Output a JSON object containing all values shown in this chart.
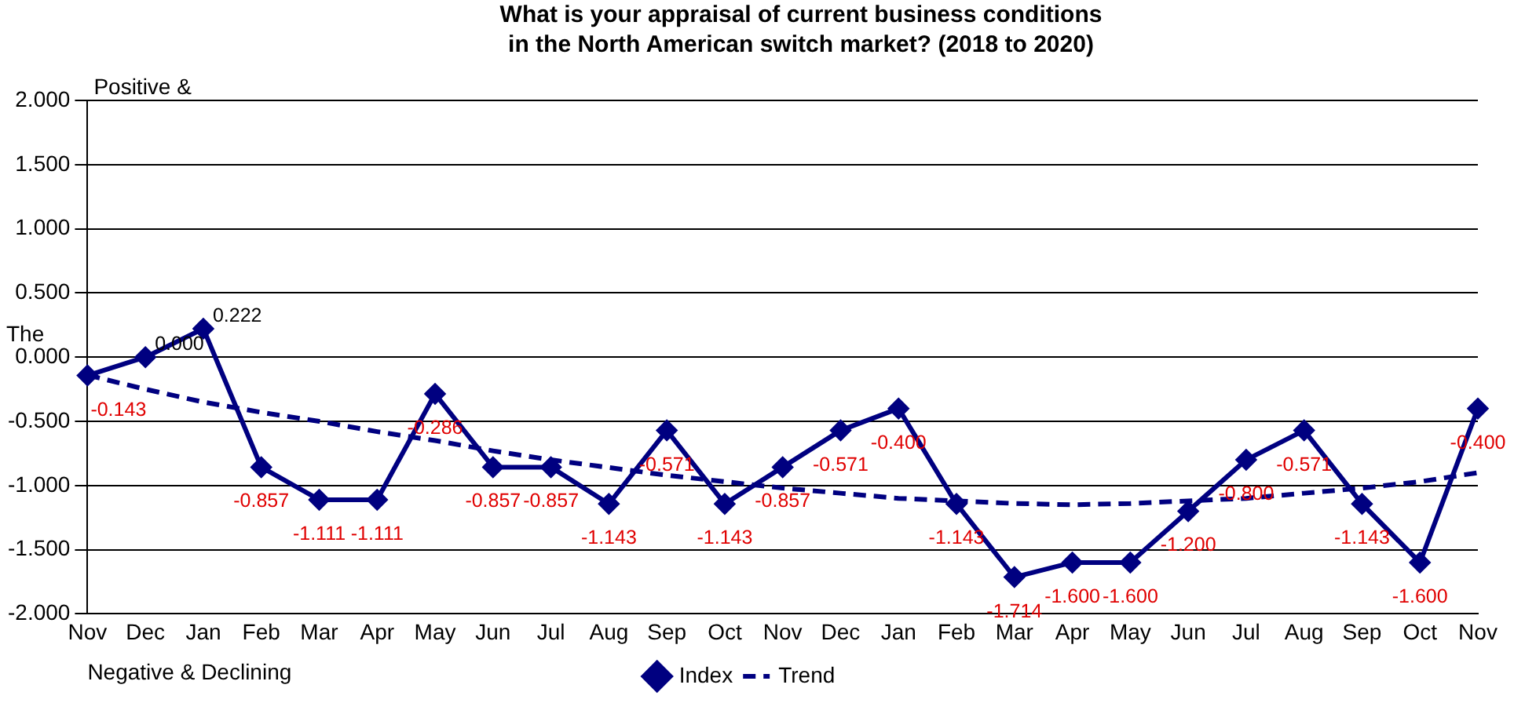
{
  "chart_data": {
    "type": "line",
    "title": "What is your appraisal of current business conditions\nin the North American switch market? (2018  to 2020)",
    "categories": [
      "Nov",
      "Dec",
      "Jan",
      "Feb",
      "Mar",
      "Apr",
      "May",
      "Jun",
      "Jul",
      "Aug",
      "Sep",
      "Oct",
      "Nov",
      "Dec",
      "Jan",
      "Feb",
      "Mar",
      "Apr",
      "May",
      "Jun",
      "Jul",
      "Aug",
      "Sep",
      "Oct",
      "Nov"
    ],
    "series": [
      {
        "name": "Index",
        "color": "#000080",
        "marker": "diamond",
        "line_style": "solid",
        "value_labels": [
          "-0.143",
          "0.000",
          "0.222",
          "-0.857",
          "-1.111",
          "-1.111",
          "-0.286",
          "-0.857",
          "-0.857",
          "-1.143",
          "-0.571",
          "-1.143",
          "-0.857",
          "-0.571",
          "-0.400",
          "-1.143",
          "-1.714",
          "-1.600",
          "-1.600",
          "-1.200",
          "-0.800",
          "-0.571",
          "-1.143",
          "-1.600",
          "-0.400"
        ],
        "values": [
          -0.143,
          0.0,
          0.222,
          -0.857,
          -1.111,
          -1.111,
          -0.286,
          -0.857,
          -0.857,
          -1.143,
          -0.571,
          -1.143,
          -0.857,
          -0.571,
          -0.4,
          -1.143,
          -1.714,
          -1.6,
          -1.6,
          -1.2,
          -0.8,
          -0.571,
          -1.143,
          -1.6,
          -0.4
        ]
      },
      {
        "name": "Trend",
        "color": "#000080",
        "marker": "none",
        "line_style": "dashed",
        "values": [
          -0.14,
          -0.25,
          -0.35,
          -0.43,
          -0.5,
          -0.58,
          -0.65,
          -0.73,
          -0.8,
          -0.86,
          -0.92,
          -0.97,
          -1.02,
          -1.06,
          -1.1,
          -1.12,
          -1.14,
          -1.15,
          -1.14,
          -1.12,
          -1.1,
          -1.06,
          -1.02,
          -0.97,
          -0.9
        ]
      }
    ],
    "ylim": [
      -2,
      2
    ],
    "yticks": [
      {
        "value": -2,
        "label": "-2.000"
      },
      {
        "value": -1.5,
        "label": "-1.500"
      },
      {
        "value": -1,
        "label": "-1.000"
      },
      {
        "value": -0.5,
        "label": "-0.500"
      },
      {
        "value": 0,
        "label": "0.000"
      },
      {
        "value": 0.5,
        "label": "0.500"
      },
      {
        "value": 1,
        "label": "1.000"
      },
      {
        "value": 1.5,
        "label": "1.500"
      },
      {
        "value": 2,
        "label": "2.000"
      }
    ],
    "grid": "y",
    "legend": "bottom",
    "annotations": [
      "Positive &",
      "The",
      "Negative & Declining"
    ]
  }
}
